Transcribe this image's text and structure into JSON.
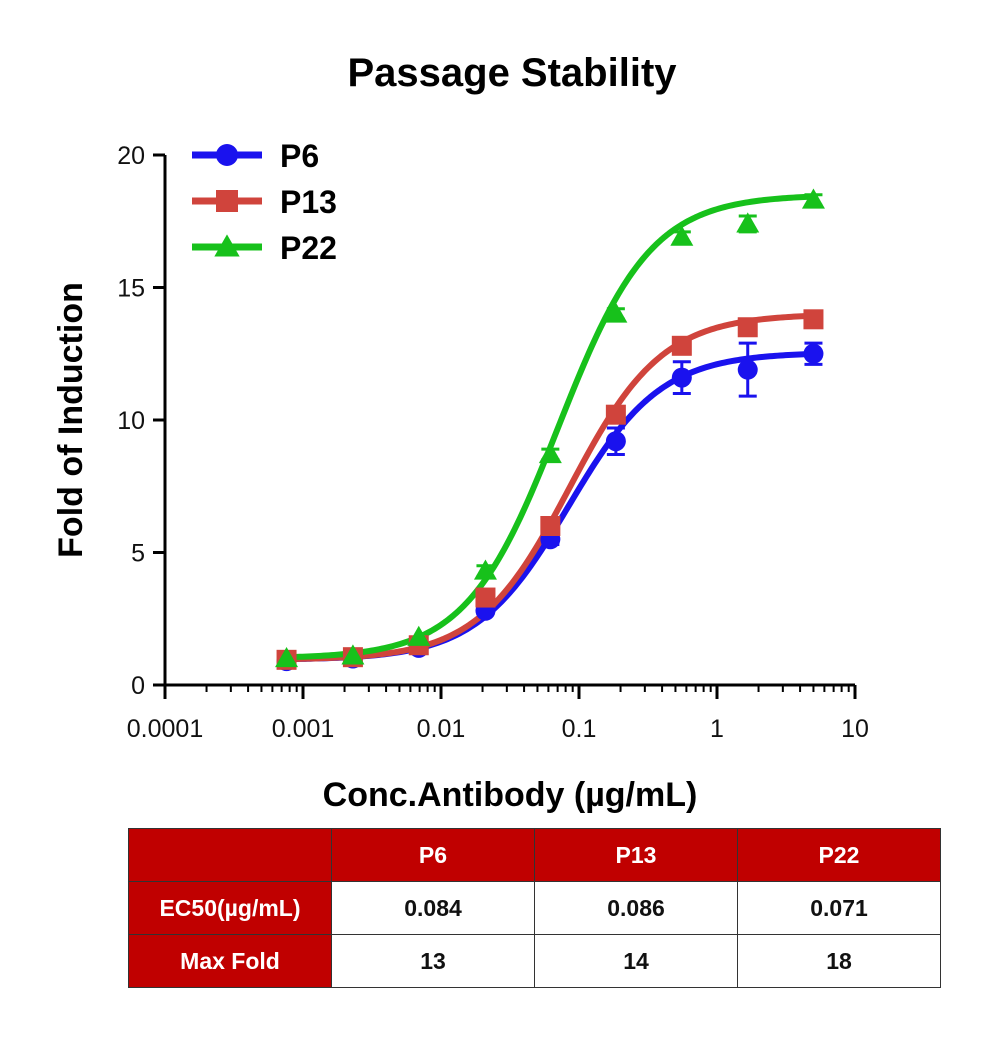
{
  "chart_data": {
    "type": "line",
    "title": "Passage Stability",
    "xlabel": "Conc.Antibody (µg/mL)",
    "ylabel": "Fold of Induction",
    "x_scale": "log",
    "xlim": [
      0.0001,
      10
    ],
    "ylim": [
      0,
      20
    ],
    "x_ticks": [
      0.0001,
      0.001,
      0.01,
      0.1,
      1,
      10
    ],
    "x_tick_labels": [
      "0.0001",
      "0.001",
      "0.01",
      "0.1",
      "1",
      "10"
    ],
    "y_ticks": [
      0,
      5,
      10,
      15,
      20
    ],
    "y_tick_labels": [
      "0",
      "5",
      "10",
      "15",
      "20"
    ],
    "legend_position": "top-left",
    "x": [
      0.00076,
      0.0023,
      0.0069,
      0.021,
      0.062,
      0.185,
      0.556,
      1.67,
      5.0
    ],
    "series": [
      {
        "name": "P6",
        "color": "#1a12ee",
        "marker": "circle",
        "values": [
          0.9,
          1.0,
          1.4,
          2.8,
          5.5,
          9.2,
          11.6,
          11.9,
          12.5
        ],
        "errors": [
          0.1,
          0.1,
          0.1,
          0.15,
          0.2,
          0.5,
          0.6,
          1.0,
          0.4
        ],
        "fit": {
          "bottom": 0.95,
          "top": 12.55,
          "ec50": 0.084,
          "hill": 1.3
        }
      },
      {
        "name": "P13",
        "color": "#d0443c",
        "marker": "square",
        "values": [
          0.95,
          1.05,
          1.5,
          3.3,
          6.0,
          10.2,
          12.8,
          13.5,
          13.8
        ],
        "errors": [
          0.1,
          0.1,
          0.1,
          0.15,
          0.2,
          0.3,
          0.3,
          0.3,
          0.3
        ],
        "fit": {
          "bottom": 0.95,
          "top": 14.0,
          "ec50": 0.086,
          "hill": 1.3
        }
      },
      {
        "name": "P22",
        "color": "#17c11b",
        "marker": "triangle",
        "values": [
          1.0,
          1.1,
          1.8,
          4.3,
          8.7,
          14.0,
          16.9,
          17.4,
          18.3
        ],
        "errors": [
          0.1,
          0.1,
          0.1,
          0.2,
          0.2,
          0.2,
          0.2,
          0.3,
          0.2
        ],
        "fit": {
          "bottom": 1.0,
          "top": 18.5,
          "ec50": 0.071,
          "hill": 1.3
        }
      }
    ]
  },
  "table": {
    "columns": [
      "",
      "P6",
      "P13",
      "P22"
    ],
    "rows": [
      {
        "label": "EC50(µg/mL)",
        "values": [
          "0.084",
          "0.086",
          "0.071"
        ]
      },
      {
        "label": "Max Fold",
        "values": [
          "13",
          "14",
          "18"
        ]
      }
    ]
  }
}
